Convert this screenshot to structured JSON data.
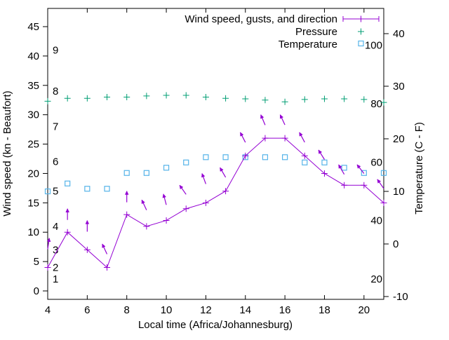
{
  "chart_data": {
    "type": "line",
    "title": "",
    "x_label": "Local time (Africa/Johannesburg)",
    "y_left_label": "Wind speed (kn - Beaufort)",
    "y_right_label": "Temperature (C - F)",
    "x_ticks": [
      4,
      6,
      8,
      10,
      12,
      14,
      16,
      18,
      20
    ],
    "x_range": [
      4,
      21
    ],
    "y_left_ticks_kn": [
      0,
      5,
      10,
      15,
      20,
      25,
      30,
      35,
      40,
      45
    ],
    "y_right_ticks_c": [
      -10,
      0,
      10,
      20,
      30,
      40
    ],
    "beaufort_scale_labels": [
      {
        "beaufort": "1",
        "kn": 2
      },
      {
        "beaufort": "2",
        "kn": 4
      },
      {
        "beaufort": "3",
        "kn": 7
      },
      {
        "beaufort": "4",
        "kn": 11
      },
      {
        "beaufort": "5",
        "kn": 17
      },
      {
        "beaufort": "6",
        "kn": 22
      },
      {
        "beaufort": "7",
        "kn": 28
      },
      {
        "beaufort": "8",
        "kn": 34
      },
      {
        "beaufort": "9",
        "kn": 41
      }
    ],
    "fahrenheit_scale_labels": [
      20,
      40,
      60,
      80,
      100
    ],
    "hours": [
      4,
      5,
      6,
      7,
      8,
      9,
      10,
      11,
      12,
      13,
      14,
      15,
      16,
      17,
      18,
      19,
      20,
      21
    ],
    "series": [
      {
        "name": "Wind speed, gusts, and direction",
        "color": "#9400d3",
        "marker": "plus-with-errorbar-and-arrows",
        "wind_speed_kn": [
          4,
          10,
          7,
          4,
          13,
          11,
          12,
          14,
          15,
          17,
          23,
          26,
          26,
          23,
          20,
          18,
          18,
          15
        ],
        "gust_kn": [
          9,
          14,
          12,
          8,
          17,
          15.5,
          16.5,
          18,
          20,
          21,
          27,
          30,
          30,
          27,
          24,
          21.5,
          21.5,
          19
        ],
        "direction_deg_from_up": [
          8,
          0,
          0,
          -25,
          0,
          -25,
          -15,
          -35,
          -20,
          -30,
          -27,
          -23,
          -25,
          -28,
          -32,
          -30,
          -38,
          -35
        ]
      },
      {
        "name": "Pressure",
        "color": "#009e73",
        "marker": "plus",
        "scale_note": "no pressure axis shown; values are plot positions on the left kn scale",
        "y_values_on_left_axis_scale_kn": [
          32.3,
          32.8,
          32.8,
          33.0,
          33.0,
          33.2,
          33.3,
          33.3,
          33.0,
          32.8,
          32.7,
          32.5,
          32.2,
          32.6,
          32.7,
          32.7,
          32.6,
          32.1
        ]
      },
      {
        "name": "Temperature",
        "color": "#56b4e9",
        "marker": "open-square",
        "temperature_c": [
          10,
          11.5,
          10.5,
          10.5,
          13.5,
          13.5,
          14.5,
          15.5,
          16.5,
          16.5,
          16.5,
          16.5,
          16.5,
          15.5,
          15.5,
          14.5,
          13.5,
          13.5
        ]
      }
    ],
    "legend": {
      "position": "top-right-inside",
      "grid": "off"
    }
  }
}
